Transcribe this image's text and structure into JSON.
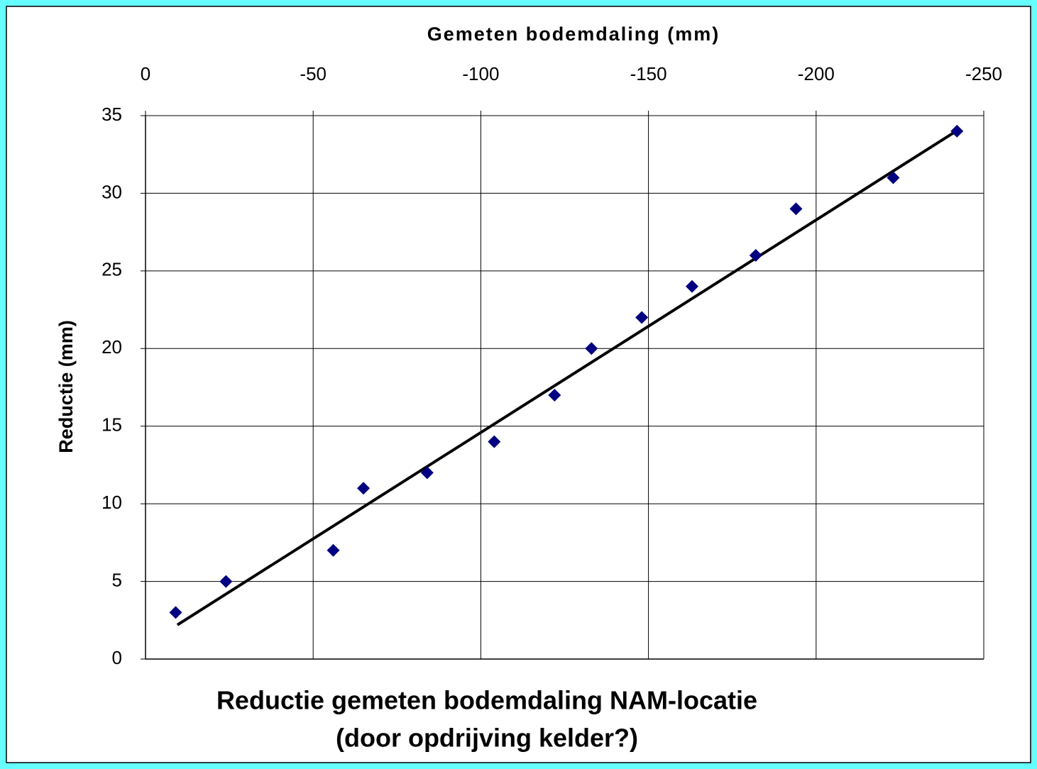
{
  "chart_data": {
    "type": "scatter",
    "title": [
      "Reductie gemeten bodemdaling NAM-locatie",
      "(door opdrijving kelder?)"
    ],
    "x_label": "Gemeten bodemdaling (mm)",
    "y_label": "Reductie (mm)",
    "series": [
      {
        "name": "Reductie",
        "color": "#000080",
        "x": [
          -9,
          -24,
          -56,
          -65,
          -84,
          -104,
          -122,
          -133,
          -148,
          -163,
          -182,
          -194,
          -223,
          -242
        ],
        "values": [
          3,
          5,
          7,
          11,
          12,
          14,
          17,
          20,
          22,
          24,
          26,
          29,
          31,
          34
        ]
      }
    ],
    "trendline": {
      "color": "#000000",
      "x": [
        -9.5,
        -242.5
      ],
      "values": [
        2.2,
        34.1
      ]
    },
    "xlim": [
      0,
      -250
    ],
    "xticks": [
      0,
      -50,
      -100,
      -150,
      -200,
      -250
    ],
    "ylim": [
      0,
      35
    ],
    "yticks": [
      0,
      5,
      10,
      15,
      20,
      25,
      30,
      35
    ],
    "grid": true
  }
}
